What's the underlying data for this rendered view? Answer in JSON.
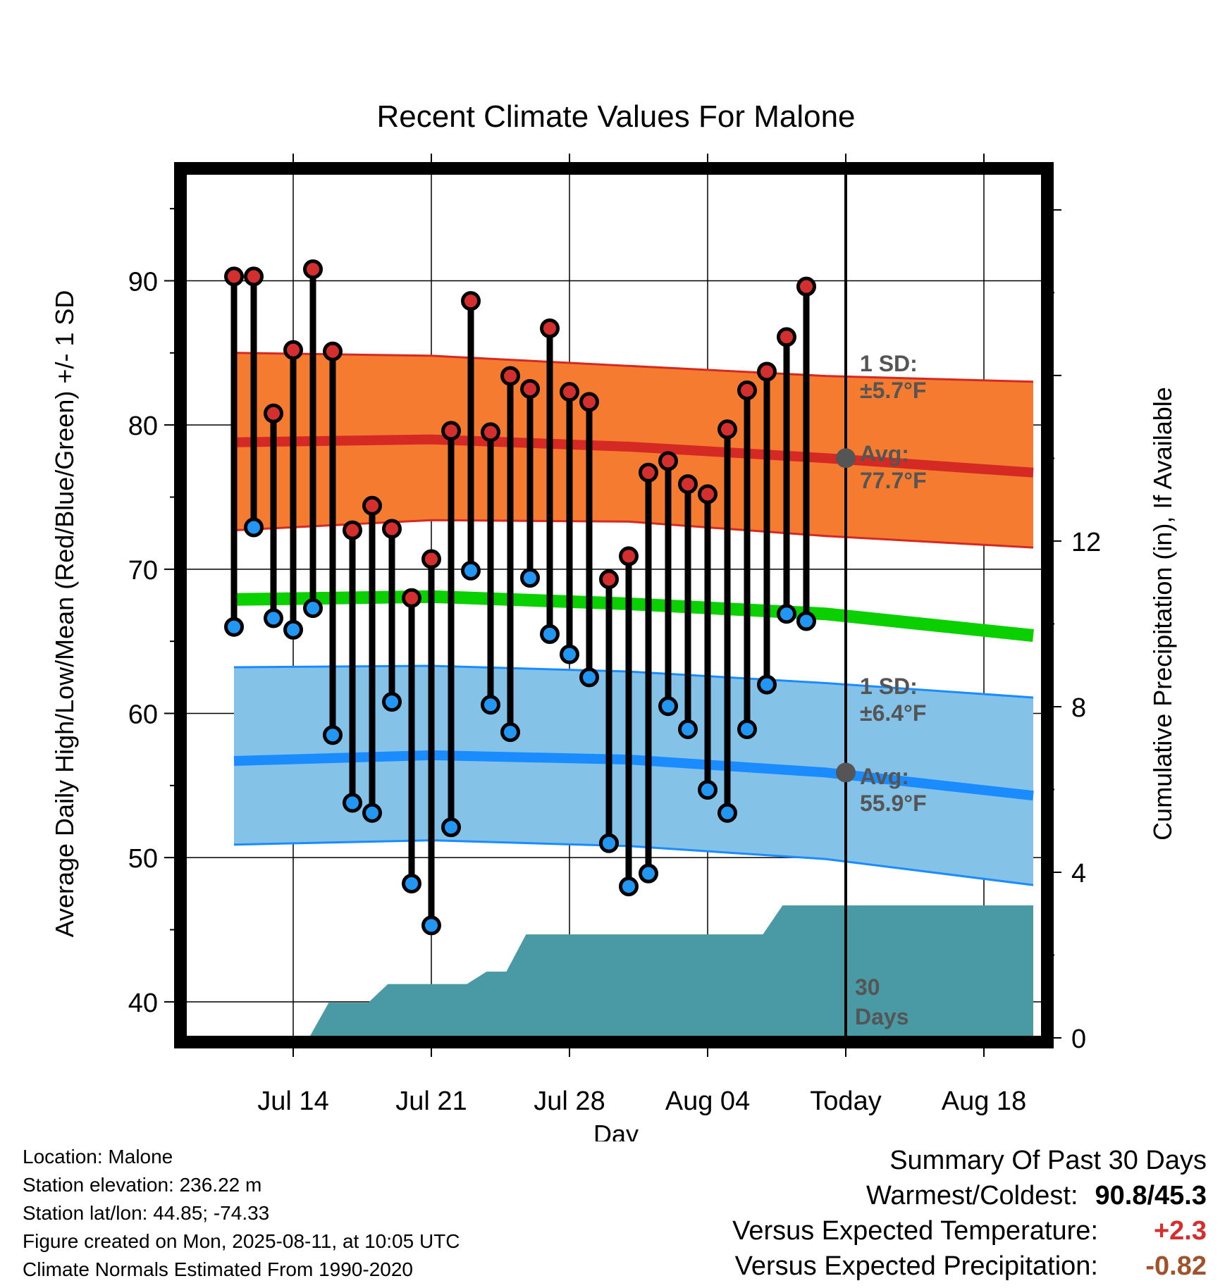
{
  "chart_data": {
    "type": "line",
    "title": "Recent Climate Values For Malone",
    "xlabel": "Day",
    "ylabel": "Average Daily High/Low/Mean (Red/Blue/Green) +/- 1 SD",
    "y2label": "Cumulative Precipitation (in), If Available",
    "ylim": [
      37.5,
      97.5
    ],
    "y2lim": [
      0,
      20.9
    ],
    "xlim_days": [
      -33.5,
      10
    ],
    "grid": true,
    "x_tick_labels": [
      {
        "day": -28,
        "label": "Jul 14"
      },
      {
        "day": -21,
        "label": "Jul 21"
      },
      {
        "day": -14,
        "label": "Jul 28"
      },
      {
        "day": -7,
        "label": "Aug 04"
      },
      {
        "day": 0,
        "label": "Today"
      },
      {
        "day": 7,
        "label": "Aug 18"
      }
    ],
    "y_ticks": [
      40,
      50,
      60,
      70,
      80,
      90
    ],
    "y2_ticks": [
      0,
      4,
      8,
      12
    ],
    "today_day": 0,
    "daily": {
      "days": [
        -31,
        -30,
        -29,
        -28,
        -27,
        -26,
        -25,
        -24,
        -23,
        -22,
        -21,
        -20,
        -19,
        -18,
        -17,
        -16,
        -15,
        -14,
        -13,
        -12,
        -11,
        -10,
        -9,
        -8,
        -7,
        -6,
        -5,
        -4,
        -3,
        -2,
        -1
      ],
      "high": [
        90.3,
        90.3,
        80.8,
        85.2,
        90.8,
        85.1,
        72.7,
        74.4,
        72.8,
        68.0,
        70.7,
        79.6,
        88.6,
        79.5,
        83.4,
        82.5,
        86.7,
        82.3,
        81.6,
        69.3,
        70.9,
        76.7,
        77.5,
        75.9,
        75.2,
        79.7,
        82.4,
        83.7,
        86.1,
        89.6,
        null
      ],
      "low": [
        66.0,
        72.9,
        66.6,
        65.8,
        67.3,
        58.5,
        53.8,
        53.1,
        60.8,
        48.2,
        45.3,
        52.1,
        69.9,
        60.6,
        58.7,
        69.4,
        65.5,
        64.1,
        62.5,
        51.0,
        48.0,
        48.9,
        60.5,
        58.9,
        54.7,
        53.1,
        58.9,
        62.0,
        66.9,
        66.4,
        null
      ]
    },
    "normals": {
      "days": [
        -31,
        -21,
        -11,
        -1,
        9.5
      ],
      "high_mean": [
        78.8,
        79.0,
        78.5,
        77.7,
        76.7
      ],
      "high_upper": [
        85.0,
        84.8,
        84.1,
        83.4,
        83.0
      ],
      "high_lower": [
        72.7,
        73.4,
        73.3,
        72.3,
        71.5
      ],
      "mean": [
        67.9,
        68.1,
        67.6,
        66.9,
        65.4
      ],
      "low_mean": [
        56.7,
        57.1,
        56.8,
        55.9,
        54.3
      ],
      "low_upper": [
        63.2,
        63.3,
        62.9,
        62.1,
        61.1
      ],
      "low_lower": [
        50.9,
        51.2,
        50.8,
        49.9,
        48.1
      ]
    },
    "precipitation_cumulative": {
      "days": [
        -27.2,
        -26.2,
        -24.2,
        -23.2,
        -22.2,
        -20.2,
        -19.2,
        -18.2,
        -17.2,
        -16.2,
        -14.2,
        -13.2,
        -12.2,
        -11.2,
        -10.2,
        -9.2,
        -8.2,
        -7.2,
        -6.2,
        -5.2,
        -4.2,
        -3.2,
        -2.2,
        -1.2,
        0,
        9.5
      ],
      "values": [
        0,
        0.85,
        0.85,
        1.3,
        1.3,
        1.3,
        1.3,
        1.6,
        1.6,
        2.5,
        2.5,
        2.5,
        2.5,
        2.5,
        2.5,
        2.5,
        2.5,
        2.5,
        2.5,
        2.5,
        2.5,
        3.2,
        3.2,
        3.2,
        3.2,
        3.2
      ]
    },
    "annotations": {
      "high_sd": [
        "1 SD:",
        "±5.7°F"
      ],
      "high_avg": [
        "Avg:",
        "77.7°F"
      ],
      "low_sd": [
        "1 SD:",
        "±6.4°F"
      ],
      "low_avg": [
        "Avg:",
        "55.9°F"
      ],
      "window": [
        "30",
        "Days"
      ]
    },
    "colors": {
      "high_band": "#f47b30",
      "high_line": "#d42a23",
      "mean_line": "#0bd000",
      "low_band": "#84c2e8",
      "low_line": "#1a8cff",
      "precip": "#4a9aa5",
      "high_marker": "#d32f2f",
      "low_marker": "#2196f3",
      "today_marker": "#555555"
    }
  },
  "metadata": {
    "location": "Location: Malone",
    "elevation": "Station elevation: 236.22 m",
    "latlon": "Station lat/lon: 44.85; -74.33",
    "created": "Figure created on Mon, 2025-08-11, at 10:05 UTC",
    "normals": "Climate Normals Estimated From 1990-2020"
  },
  "summary": {
    "heading": "Summary Of Past 30 Days",
    "warmest_label": "Warmest/Coldest:",
    "warmest_value": "90.8/45.3",
    "temp_label": "Versus Expected Temperature:",
    "temp_value": "+2.3",
    "temp_color": "#d32f2f",
    "precip_label": "Versus Expected Precipitation:",
    "precip_value": "-0.82",
    "precip_color": "#a0522d"
  }
}
